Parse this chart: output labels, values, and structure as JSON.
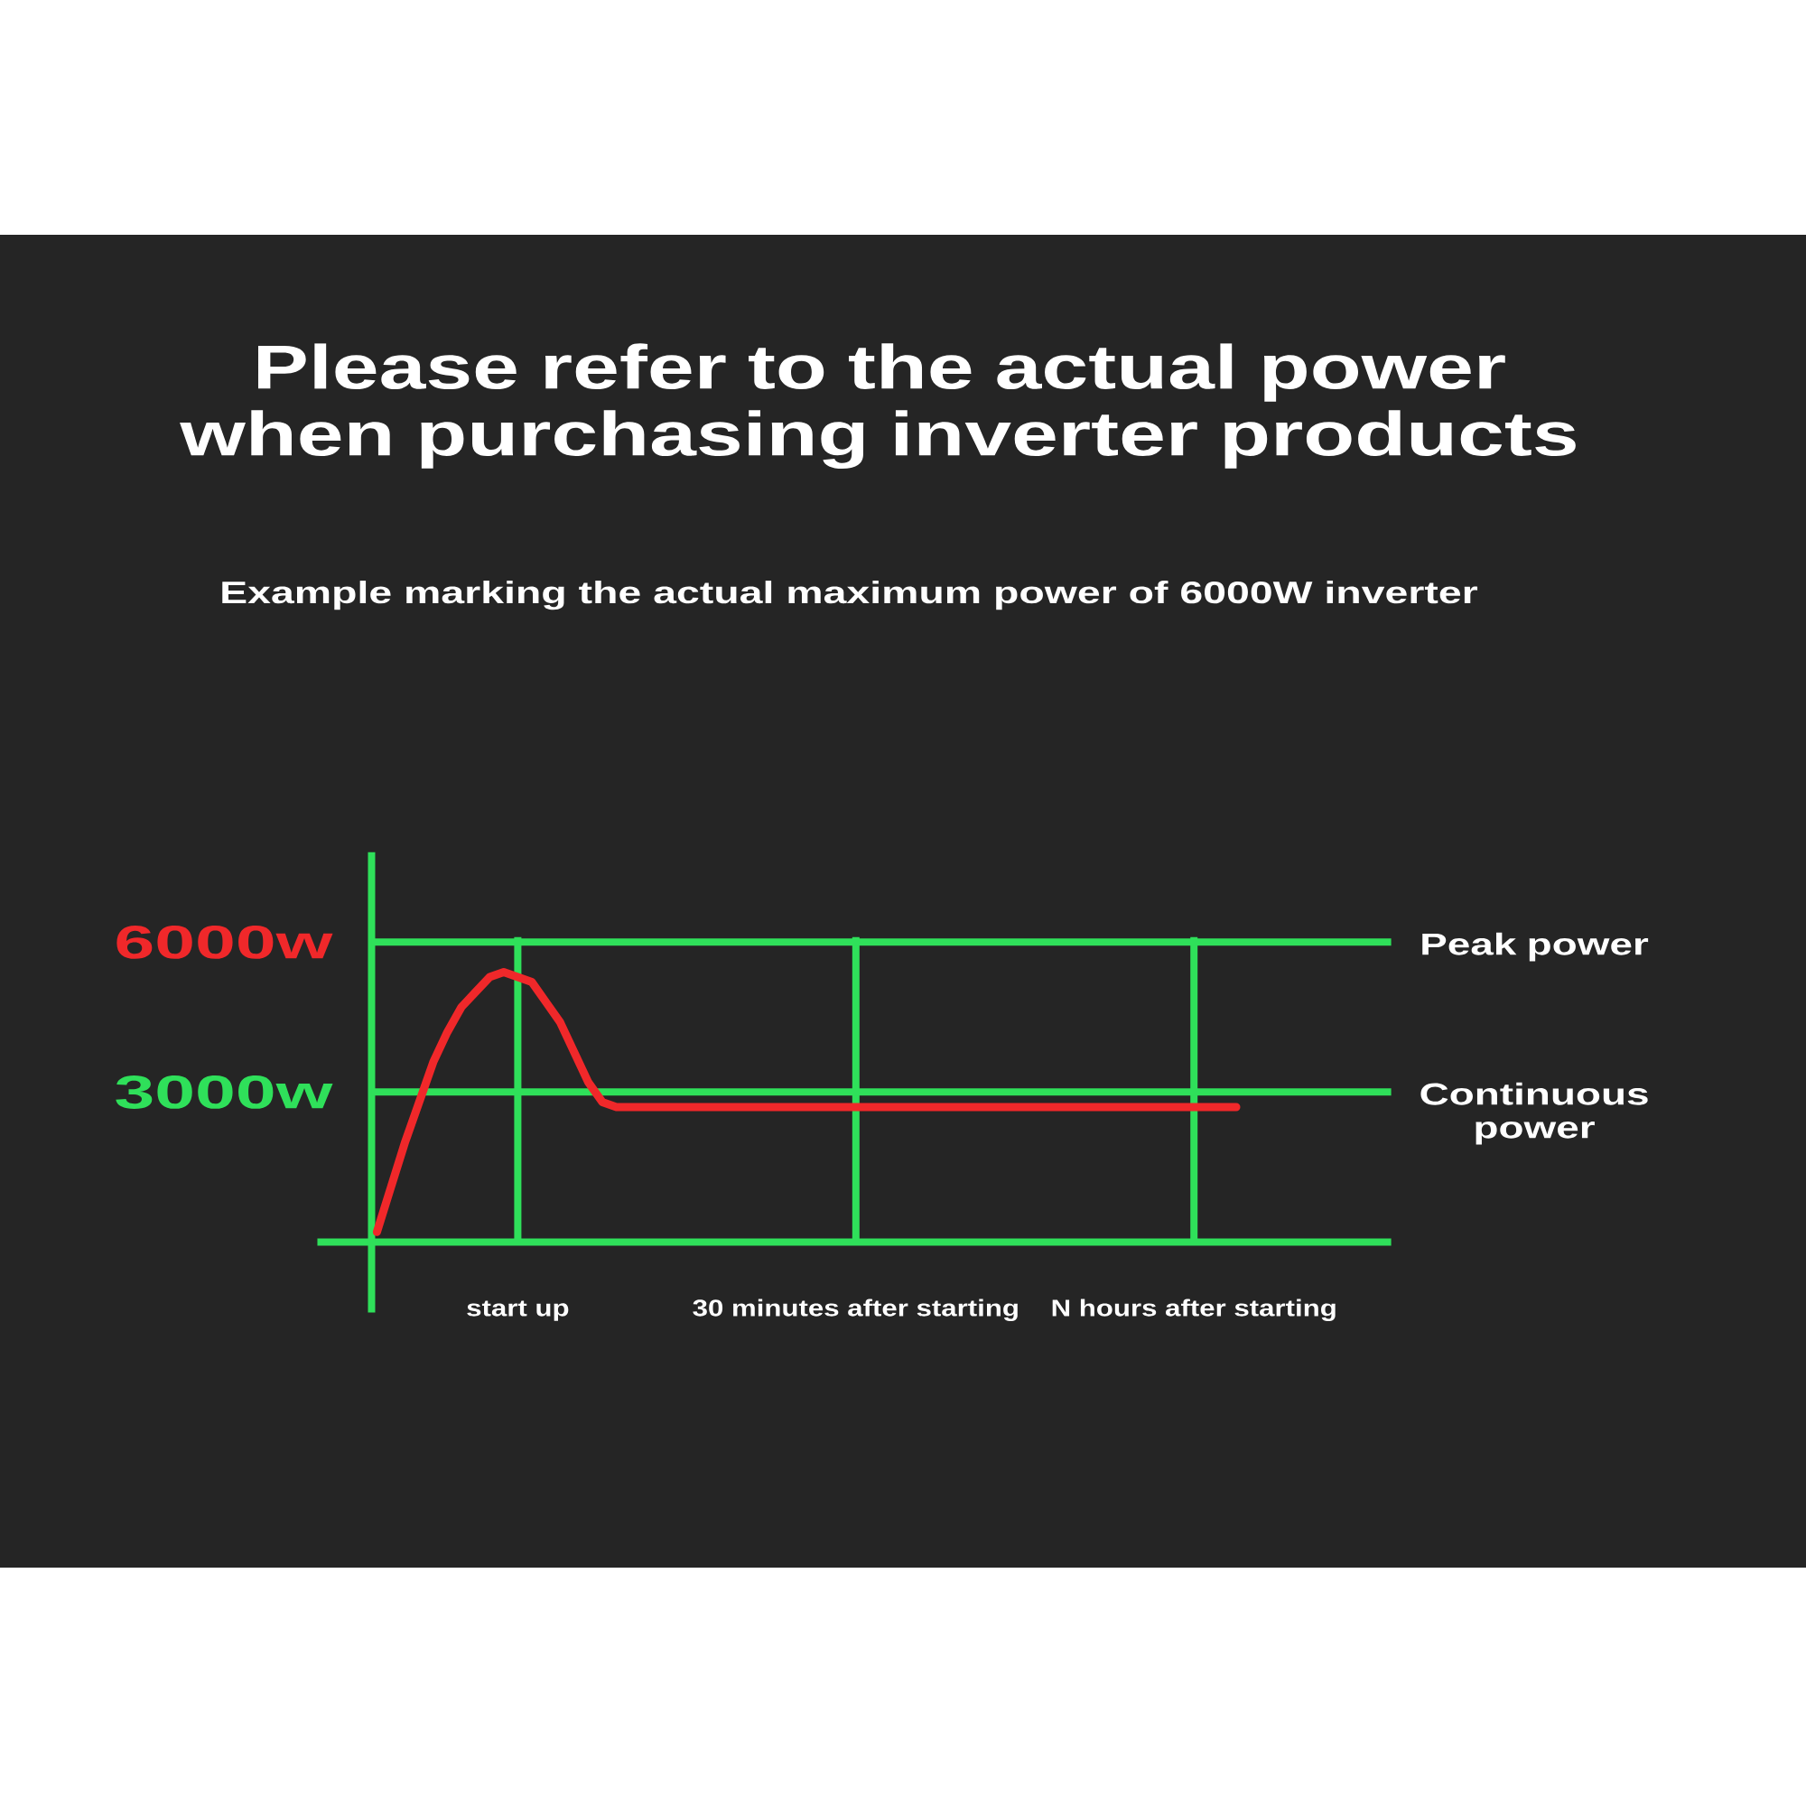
{
  "chart_data": {
    "type": "line",
    "title": "Please refer to the actual power when purchasing inverter products",
    "subtitle": "Example marking the actual maximum power of 6000W inverter",
    "categories": [
      null,
      null,
      null,
      null,
      null,
      null,
      null,
      null,
      null,
      null,
      "start up",
      null,
      null,
      null,
      null,
      null,
      null,
      null,
      null,
      null,
      null,
      null,
      null,
      null,
      null,
      null,
      null,
      null,
      null,
      null,
      null,
      null,
      null,
      null,
      "30 minutes after starting",
      null,
      null,
      null,
      null,
      null,
      null,
      null,
      null,
      null,
      null,
      null,
      null,
      null,
      null,
      null,
      null,
      null,
      null,
      null,
      null,
      null,
      null,
      null,
      "N hours after starting",
      null,
      null,
      null
    ],
    "series": [
      {
        "color": "#f0282a",
        "values": [
          200,
          1100,
          2000,
          2800,
          3600,
          4200,
          4700,
          5000,
          5300,
          5400,
          5300,
          5200,
          4800,
          4400,
          3800,
          3200,
          2800,
          2700,
          2700,
          2700,
          2700,
          2700,
          2700,
          2700,
          2700,
          2700,
          2700,
          2700,
          2700,
          2700,
          2700,
          2700,
          2700,
          2700,
          2700,
          2700,
          2700,
          2700,
          2700,
          2700,
          2700,
          2700,
          2700,
          2700,
          2700,
          2700,
          2700,
          2700,
          2700,
          2700,
          2700,
          2700,
          2700,
          2700,
          2700,
          2700,
          2700,
          2700,
          2700,
          2700,
          2700,
          2700
        ]
      }
    ],
    "ylim": [
      0,
      6100
    ],
    "yticks": [
      {
        "value": 6000,
        "label": "6000w"
      },
      {
        "value": 3000,
        "label": "3000w"
      }
    ],
    "ref_lines": [
      {
        "axis": "y",
        "value": 6000,
        "label": "Peak power",
        "color": "#2fe05a"
      },
      {
        "axis": "y",
        "value": 3000,
        "label": "Continuous power",
        "color": "#2fe05a"
      }
    ],
    "grid": "x",
    "line_style": "solid"
  }
}
